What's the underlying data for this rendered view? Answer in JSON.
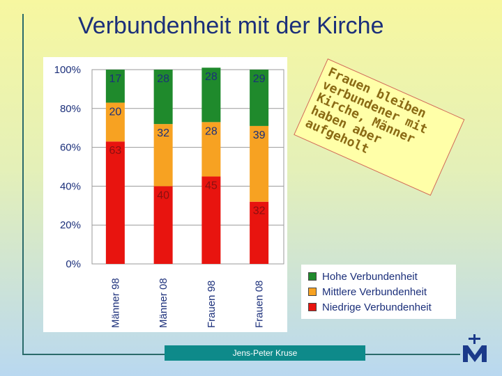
{
  "title": "Verbundenheit mit der Kirche",
  "note": "Frauen bleiben verbundener mit Kirche, Männer haben aber aufgeholt",
  "footer": "Jens-Peter Kruse",
  "logo": {
    "icon": "cross-m-logo",
    "color": "#1b3a8a"
  },
  "colors": {
    "hohe": "#1f8a2c",
    "mittlere": "#f7a222",
    "niedrige": "#e8140f",
    "label_dark": "#1b2f7a",
    "label_red": "#8a1010"
  },
  "chart_data": {
    "type": "bar",
    "stacked": true,
    "categories": [
      "Männer 98",
      "Männer 08",
      "Frauen 98",
      "Frauen 08"
    ],
    "series": [
      {
        "name": "Niedrige Verbundenheit",
        "values": [
          63,
          40,
          45,
          32
        ],
        "color": "#e8140f"
      },
      {
        "name": "Mittlere Verbundenheit",
        "values": [
          20,
          32,
          28,
          39
        ],
        "color": "#f7a222"
      },
      {
        "name": "Hohe Verbundenheit",
        "values": [
          17,
          28,
          28,
          29
        ],
        "color": "#1f8a2c"
      }
    ],
    "ylim": [
      0,
      100
    ],
    "yticks": [
      "0%",
      "20%",
      "40%",
      "60%",
      "80%",
      "100%"
    ],
    "grid": true,
    "legend_position": "bottom-right"
  }
}
